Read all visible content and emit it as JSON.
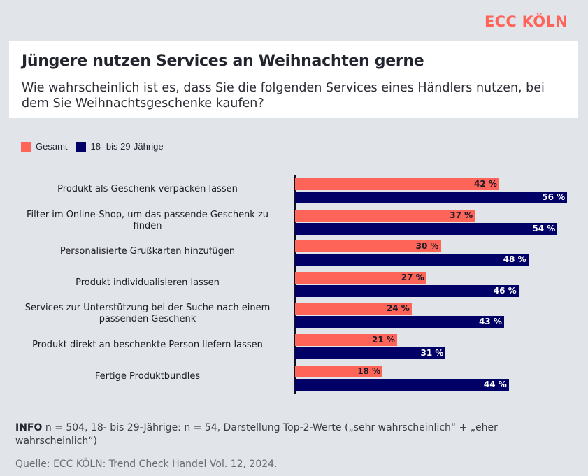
{
  "brand": "ECC KÖLN",
  "header": {
    "title": "Jüngere nutzen Services an Weihnachten gerne",
    "subtitle": "Wie wahrscheinlich ist es, dass Sie die folgenden Services eines Händlers nutzen, bei dem Sie Weihnachtsgeschenke kaufen?"
  },
  "colors": {
    "gesamt": "#ff6459",
    "young": "#000066",
    "brand": "#ff6459"
  },
  "chart_data": {
    "type": "bar",
    "orientation": "horizontal",
    "title": "Jüngere nutzen Services an Weihnachten gerne",
    "xlabel": "",
    "ylabel": "",
    "xlim": [
      0,
      60
    ],
    "grid": false,
    "legend_position": "top-left",
    "categories": [
      "Produkt als Geschenk verpacken lassen",
      "Filter im Online-Shop, um das passende Geschenk zu finden",
      "Personalisierte Grußkarten hinzufügen",
      "Produkt individualisieren lassen",
      "Services zur Unterstützung bei der Suche nach einem passenden Geschenk",
      "Produkt direkt an beschenkte Person liefern lassen",
      "Fertige Produktbundles"
    ],
    "series": [
      {
        "name": "Gesamt",
        "color": "#ff6459",
        "values": [
          42,
          37,
          30,
          27,
          24,
          21,
          18
        ],
        "labels": [
          "42 %",
          "37 %",
          "30 %",
          "27 %",
          "24 %",
          "21 %",
          "18 %"
        ]
      },
      {
        "name": "18- bis 29-Jährige",
        "color": "#000066",
        "values": [
          56,
          54,
          48,
          46,
          43,
          31,
          44
        ],
        "labels": [
          "56 %",
          "54 %",
          "48 %",
          "46 %",
          "43 %",
          "31 %",
          "44 %"
        ]
      }
    ]
  },
  "footer": {
    "info_label": "INFO",
    "info_text": " n = 504, 18- bis 29-Jährige: n = 54, Darstellung Top-2-Werte („sehr wahrscheinlich“ + „eher wahrscheinlich“)",
    "source": "Quelle: ECC KÖLN: Trend Check Handel Vol. 12, 2024."
  }
}
